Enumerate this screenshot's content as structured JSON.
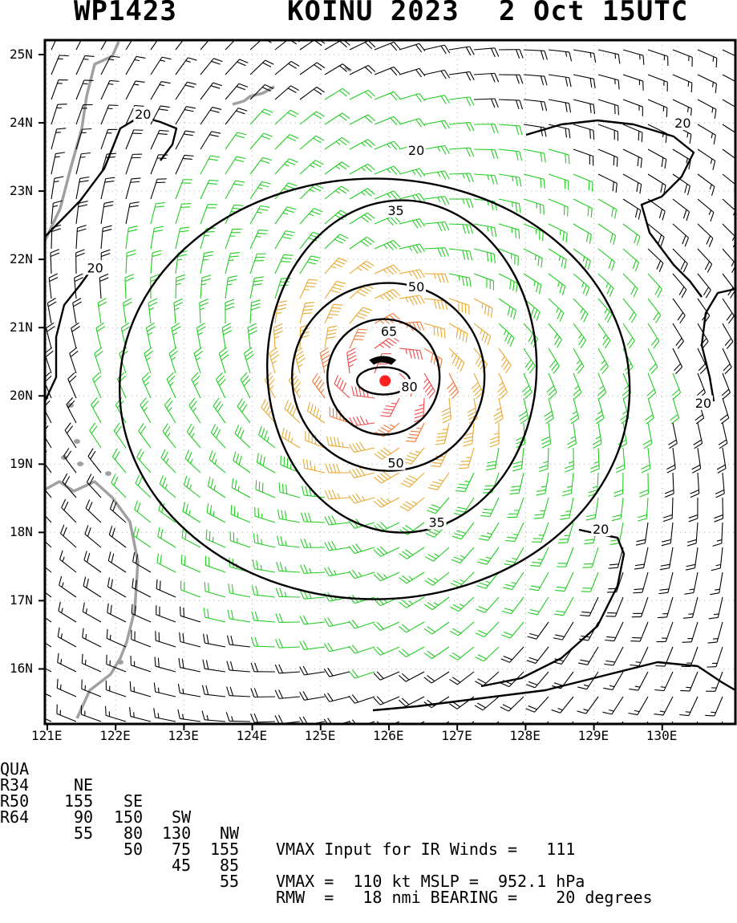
{
  "header": {
    "storm_id": "WP1423",
    "storm_name_year": "KOINU 2023",
    "datetime": "2 Oct 15UTC"
  },
  "map": {
    "lat_labels": [
      "25N",
      "24N",
      "23N",
      "22N",
      "21N",
      "20N",
      "19N",
      "18N",
      "17N",
      "16N"
    ],
    "lon_labels": [
      "121E",
      "122E",
      "123E",
      "124E",
      "125E",
      "126E",
      "127E",
      "128E",
      "129E",
      "130E"
    ],
    "contour_labels": [
      {
        "text": "20",
        "lon": 122.4,
        "lat": 24.13
      },
      {
        "text": "20",
        "lon": 126.4,
        "lat": 23.6
      },
      {
        "text": "20",
        "lon": 130.3,
        "lat": 24.0
      },
      {
        "text": "20",
        "lon": 121.7,
        "lat": 21.88
      },
      {
        "text": "20",
        "lon": 130.6,
        "lat": 19.9
      },
      {
        "text": "20",
        "lon": 129.1,
        "lat": 18.05
      },
      {
        "text": "35",
        "lon": 126.1,
        "lat": 22.72
      },
      {
        "text": "35",
        "lon": 126.7,
        "lat": 18.15
      },
      {
        "text": "50",
        "lon": 126.4,
        "lat": 21.6
      },
      {
        "text": "50",
        "lon": 126.1,
        "lat": 19.02
      },
      {
        "text": "65",
        "lon": 126.0,
        "lat": 20.95
      },
      {
        "text": "80",
        "lon": 126.3,
        "lat": 20.14
      }
    ],
    "center": {
      "lon": 125.92,
      "lat": 20.22
    },
    "colors": {
      "calm": "#000000",
      "ts": "#22cc22",
      "gale": "#e8a830",
      "storm": "#f07838",
      "hurricane": "#f04848",
      "center": "#ff2020",
      "coast": "#a0a0a0"
    }
  },
  "stats": {
    "header_row": {
      "label": "QUA",
      "ne": "NE",
      "se": "SE",
      "sw": "SW",
      "nw": "NW",
      "info": "VMAX Input for IR Winds =   111"
    },
    "rows": [
      {
        "label": "R34",
        "ne": "155",
        "se": "150",
        "sw": "130",
        "nw": "155",
        "info": ""
      },
      {
        "label": "R50",
        "ne": "90",
        "se": "80",
        "sw": "75",
        "nw": "85",
        "info": "VMAX =  110 kt MSLP =  952.1 hPa"
      },
      {
        "label": "R64",
        "ne": "55",
        "se": "50",
        "sw": "45",
        "nw": "55",
        "info": "RMW  =   18 nmi BEARING =    20 degrees"
      }
    ]
  }
}
